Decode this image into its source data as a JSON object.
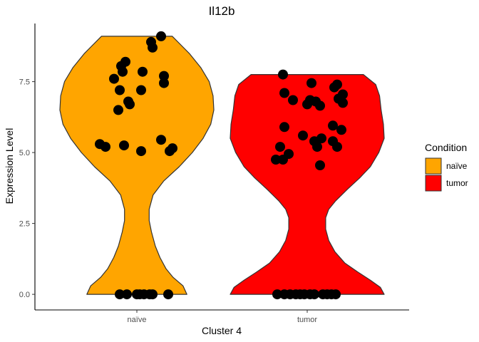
{
  "chart_data": {
    "type": "violin",
    "title": "Il12b",
    "xlabel": "Cluster 4",
    "ylabel": "Expression Level",
    "categories": [
      "naïve",
      "tumor"
    ],
    "ylim": [
      -0.55,
      9.55
    ],
    "yticks": [
      0.0,
      2.5,
      5.0,
      7.5
    ],
    "ytick_labels": [
      "0.0",
      "2.5",
      "5.0",
      "7.5"
    ],
    "grid": false,
    "legend": {
      "title": "Condition",
      "position": "right",
      "entries": [
        {
          "label": "naïve",
          "color": "#FFA500"
        },
        {
          "label": "tumor",
          "color": "#FF0000"
        }
      ]
    },
    "series": [
      {
        "name": "naïve",
        "color": "#FFA500",
        "violin_max": 9.1,
        "violin_min": 0.0,
        "density_y": [
          0.0,
          0.3,
          0.6,
          0.9,
          1.3,
          1.7,
          2.2,
          2.6,
          3.0,
          3.5,
          4.0,
          4.5,
          5.0,
          5.5,
          6.0,
          6.5,
          7.0,
          7.5,
          8.0,
          8.5,
          9.1
        ],
        "density_w": [
          0.65,
          0.6,
          0.47,
          0.38,
          0.3,
          0.24,
          0.19,
          0.16,
          0.16,
          0.21,
          0.35,
          0.55,
          0.72,
          0.86,
          0.96,
          1.0,
          0.99,
          0.94,
          0.83,
          0.68,
          0.46
        ],
        "points": [
          {
            "x": -0.12,
            "y": 0.0
          },
          {
            "x": -0.07,
            "y": 0.0
          },
          {
            "x": 0.0,
            "y": 0.0
          },
          {
            "x": 0.02,
            "y": 0.0
          },
          {
            "x": 0.05,
            "y": 0.0
          },
          {
            "x": 0.09,
            "y": 0.0
          },
          {
            "x": 0.11,
            "y": 0.0
          },
          {
            "x": 0.22,
            "y": 0.0
          },
          {
            "x": -0.26,
            "y": 5.3
          },
          {
            "x": -0.22,
            "y": 5.2
          },
          {
            "x": -0.09,
            "y": 5.25
          },
          {
            "x": 0.03,
            "y": 5.05
          },
          {
            "x": 0.17,
            "y": 5.45
          },
          {
            "x": 0.23,
            "y": 5.05
          },
          {
            "x": 0.25,
            "y": 5.15
          },
          {
            "x": -0.13,
            "y": 6.5
          },
          {
            "x": -0.05,
            "y": 6.7
          },
          {
            "x": -0.06,
            "y": 6.8
          },
          {
            "x": -0.12,
            "y": 7.2
          },
          {
            "x": 0.03,
            "y": 7.2
          },
          {
            "x": 0.19,
            "y": 7.45
          },
          {
            "x": 0.19,
            "y": 7.7
          },
          {
            "x": -0.16,
            "y": 7.6
          },
          {
            "x": -0.1,
            "y": 7.85
          },
          {
            "x": 0.04,
            "y": 7.85
          },
          {
            "x": -0.11,
            "y": 8.05
          },
          {
            "x": -0.08,
            "y": 8.2
          },
          {
            "x": 0.11,
            "y": 8.7
          },
          {
            "x": 0.1,
            "y": 8.9
          },
          {
            "x": 0.17,
            "y": 9.1
          }
        ]
      },
      {
        "name": "tumor",
        "color": "#FF0000",
        "violin_max": 7.75,
        "violin_min": 0.0,
        "density_y": [
          0.0,
          0.25,
          0.5,
          0.8,
          1.1,
          1.5,
          1.9,
          2.3,
          2.7,
          3.0,
          3.3,
          3.7,
          4.1,
          4.5,
          5.0,
          5.5,
          6.0,
          6.5,
          7.0,
          7.4,
          7.75
        ],
        "density_w": [
          1.0,
          0.95,
          0.82,
          0.65,
          0.49,
          0.36,
          0.28,
          0.24,
          0.24,
          0.28,
          0.37,
          0.52,
          0.68,
          0.82,
          0.93,
          1.0,
          0.99,
          0.96,
          0.94,
          0.89,
          0.73
        ],
        "points": [
          {
            "x": -0.21,
            "y": 0.0
          },
          {
            "x": -0.16,
            "y": 0.0
          },
          {
            "x": -0.12,
            "y": 0.0
          },
          {
            "x": -0.08,
            "y": 0.0
          },
          {
            "x": -0.05,
            "y": 0.0
          },
          {
            "x": -0.02,
            "y": 0.0
          },
          {
            "x": 0.02,
            "y": 0.0
          },
          {
            "x": 0.05,
            "y": 0.0
          },
          {
            "x": 0.11,
            "y": 0.0
          },
          {
            "x": 0.14,
            "y": 0.0
          },
          {
            "x": 0.17,
            "y": 0.0
          },
          {
            "x": 0.2,
            "y": 0.0
          },
          {
            "x": -0.22,
            "y": 4.75
          },
          {
            "x": -0.17,
            "y": 4.75
          },
          {
            "x": -0.13,
            "y": 4.95
          },
          {
            "x": -0.19,
            "y": 5.2
          },
          {
            "x": 0.09,
            "y": 4.55
          },
          {
            "x": -0.03,
            "y": 5.6
          },
          {
            "x": 0.05,
            "y": 5.4
          },
          {
            "x": 0.07,
            "y": 5.2
          },
          {
            "x": 0.1,
            "y": 5.5
          },
          {
            "x": 0.18,
            "y": 5.4
          },
          {
            "x": 0.21,
            "y": 5.2
          },
          {
            "x": 0.18,
            "y": 5.95
          },
          {
            "x": 0.24,
            "y": 5.8
          },
          {
            "x": -0.16,
            "y": 5.9
          },
          {
            "x": 0.0,
            "y": 6.7
          },
          {
            "x": 0.02,
            "y": 6.85
          },
          {
            "x": 0.06,
            "y": 6.8
          },
          {
            "x": 0.09,
            "y": 6.65
          },
          {
            "x": -0.1,
            "y": 6.85
          },
          {
            "x": -0.16,
            "y": 7.1
          },
          {
            "x": 0.19,
            "y": 7.3
          },
          {
            "x": 0.21,
            "y": 7.4
          },
          {
            "x": 0.22,
            "y": 6.9
          },
          {
            "x": 0.25,
            "y": 7.05
          },
          {
            "x": 0.25,
            "y": 6.75
          },
          {
            "x": 0.03,
            "y": 7.45
          },
          {
            "x": -0.17,
            "y": 7.75
          }
        ]
      }
    ]
  }
}
